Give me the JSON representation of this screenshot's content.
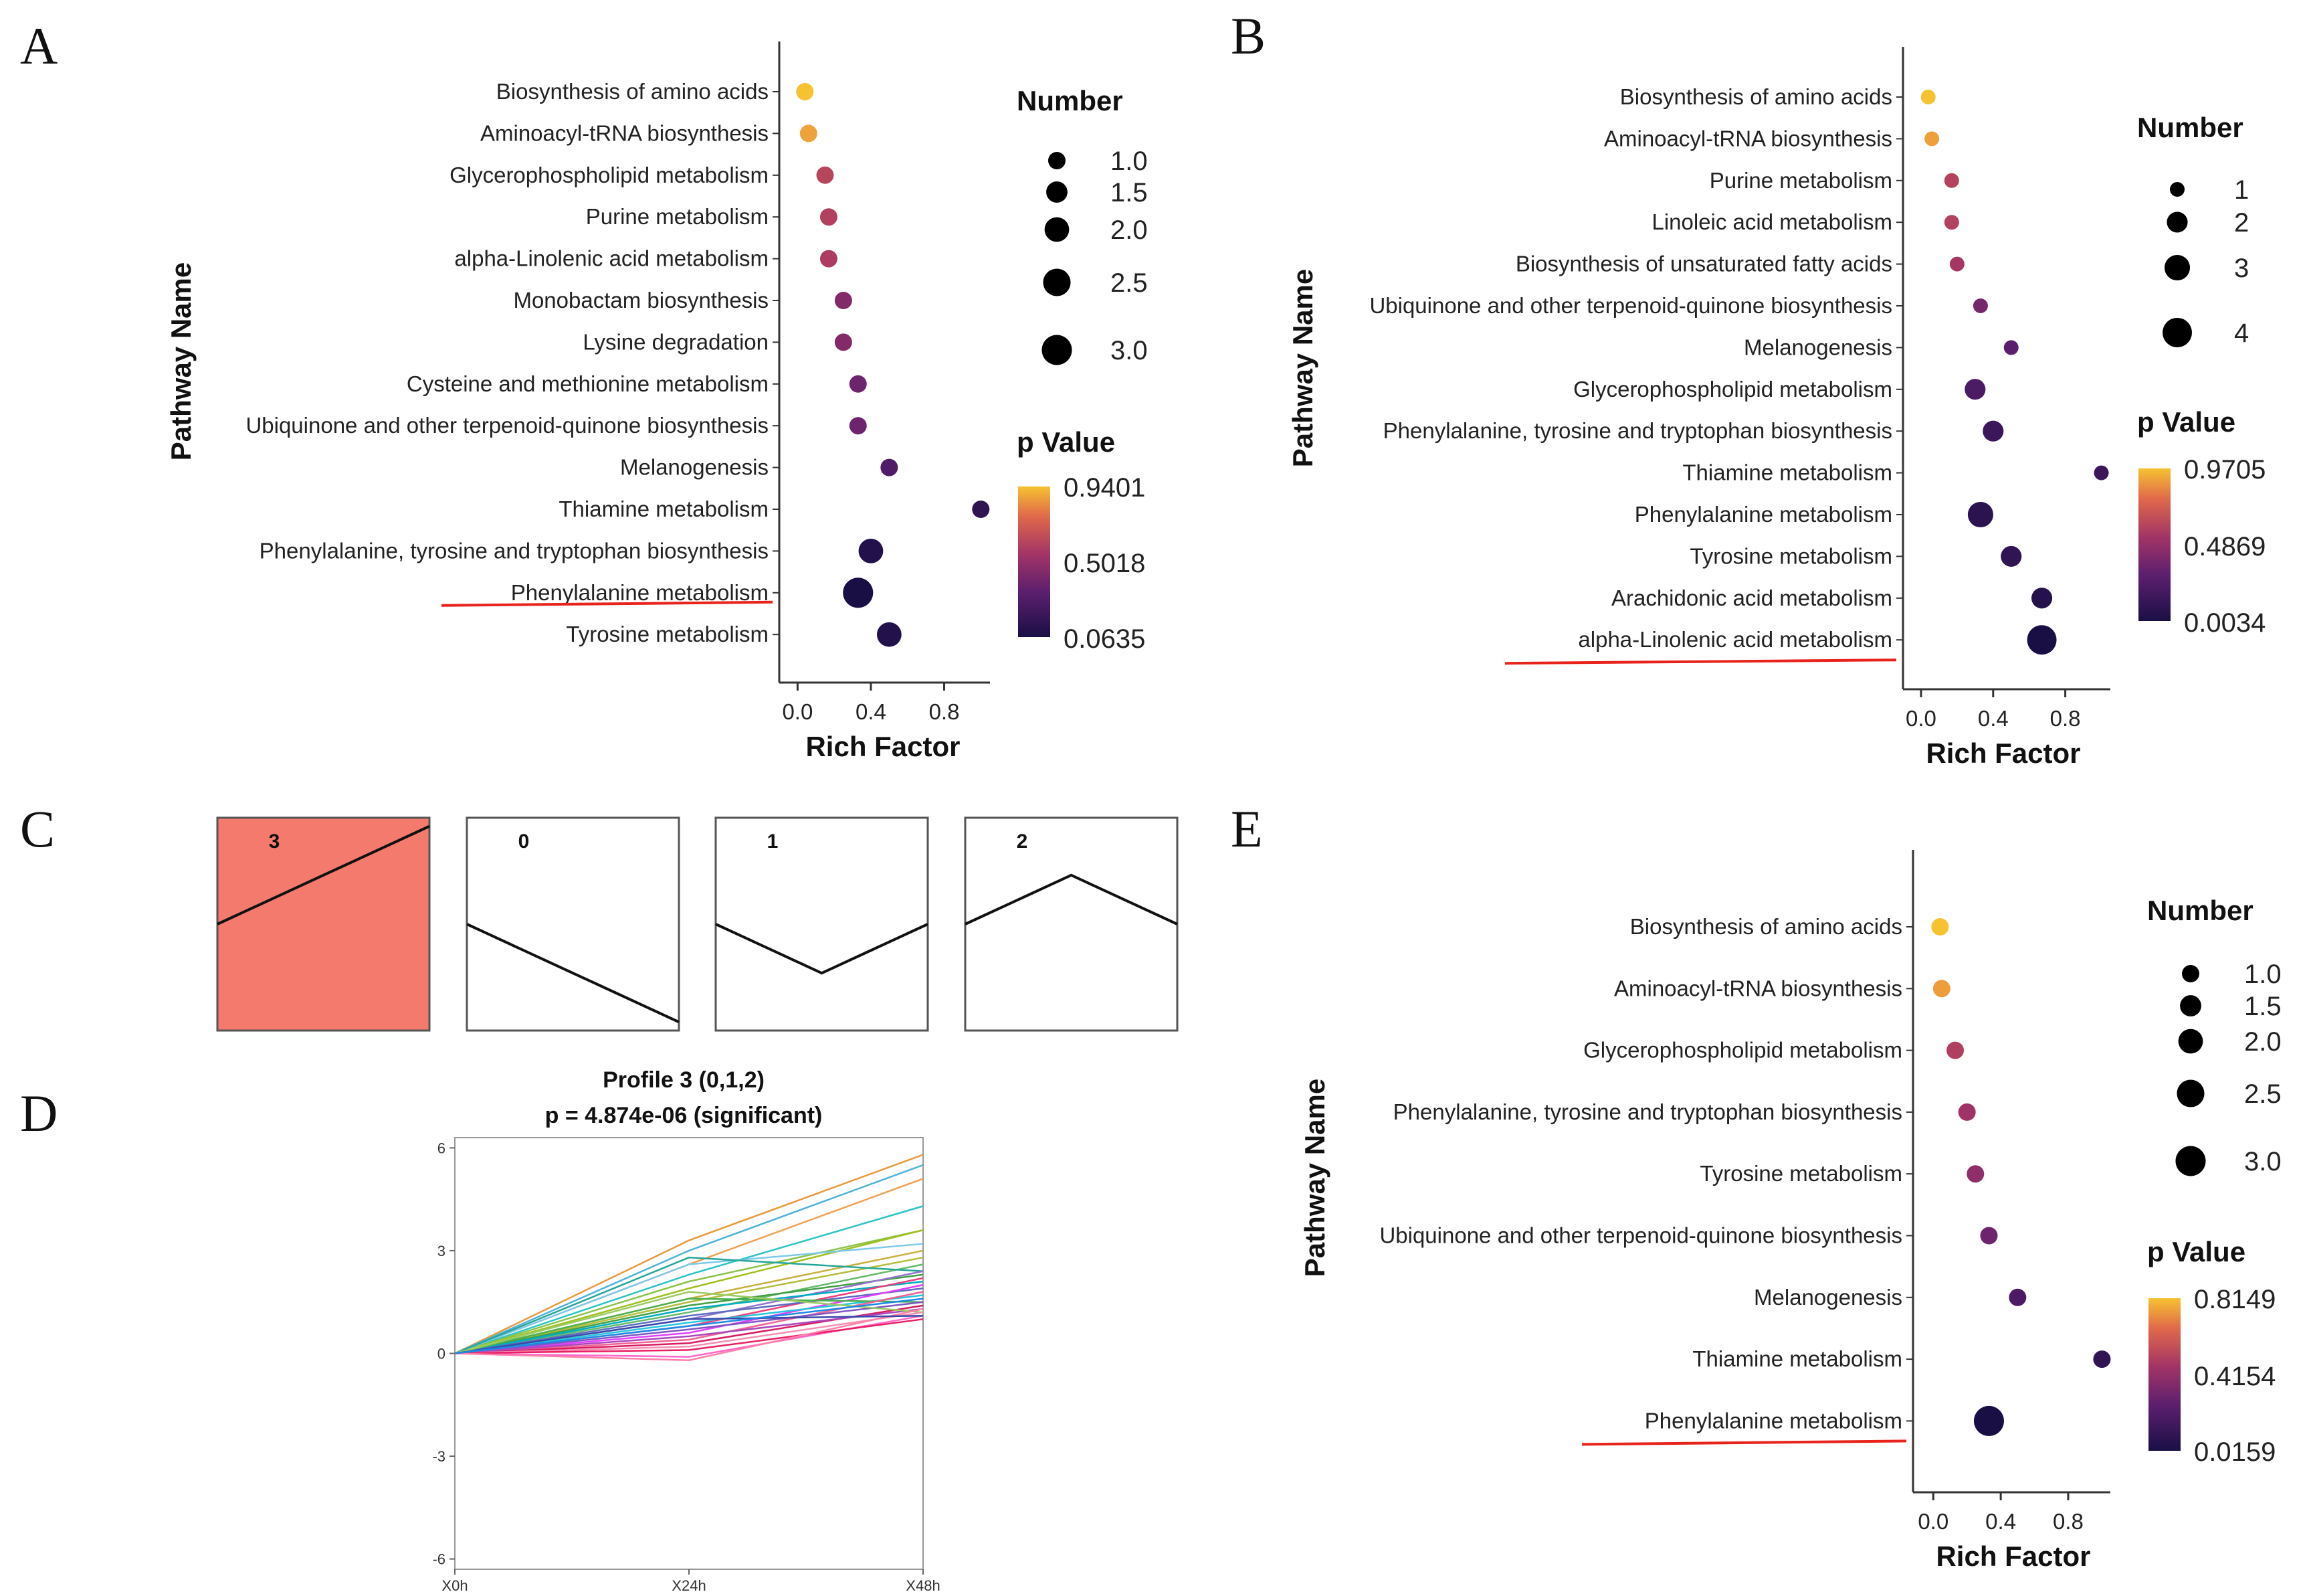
{
  "panels": {
    "A": {
      "letter": "A",
      "chart_data": {
        "type": "scatter",
        "subtype": "bubble",
        "xlabel": "Rich Factor",
        "ylabel": "Pathway Name",
        "xlim": [
          -0.1,
          1.05
        ],
        "xticks": [
          "0.0",
          "0.4",
          "0.8"
        ],
        "pathways": [
          {
            "name": "Biosynthesis of amino acids",
            "rich": 0.04,
            "number": 1,
            "p": 0.9401
          },
          {
            "name": "Aminoacyl-tRNA biosynthesis",
            "rich": 0.06,
            "number": 1,
            "p": 0.88
          },
          {
            "name": "Glycerophospholipid metabolism",
            "rich": 0.15,
            "number": 1,
            "p": 0.62
          },
          {
            "name": "Purine metabolism",
            "rich": 0.17,
            "number": 1,
            "p": 0.6
          },
          {
            "name": "alpha-Linolenic acid metabolism",
            "rich": 0.17,
            "number": 1,
            "p": 0.58
          },
          {
            "name": "Monobactam biosynthesis",
            "rich": 0.25,
            "number": 1,
            "p": 0.45
          },
          {
            "name": "Lysine degradation",
            "rich": 0.25,
            "number": 1,
            "p": 0.45
          },
          {
            "name": "Cysteine and methionine metabolism",
            "rich": 0.33,
            "number": 1,
            "p": 0.38
          },
          {
            "name": "Ubiquinone and other terpenoid-quinone biosynthesis",
            "rich": 0.33,
            "number": 1,
            "p": 0.38
          },
          {
            "name": "Melanogenesis",
            "rich": 0.5,
            "number": 1,
            "p": 0.28
          },
          {
            "name": "Thiamine metabolism",
            "rich": 1.0,
            "number": 1,
            "p": 0.15
          },
          {
            "name": "Phenylalanine, tyrosine and tryptophan biosynthesis",
            "rich": 0.4,
            "number": 2,
            "p": 0.1
          },
          {
            "name": "Phenylalanine metabolism",
            "rich": 0.33,
            "number": 3,
            "p": 0.0635
          },
          {
            "name": "Tyrosine metabolism",
            "rich": 0.5,
            "number": 2,
            "p": 0.1
          }
        ],
        "underlined": "Phenylalanine metabolism",
        "size_legend": {
          "title": "Number",
          "values": [
            "1.0",
            "1.5",
            "2.0",
            "2.5",
            "3.0"
          ]
        },
        "color_legend": {
          "title": "p Value",
          "max": "0.9401",
          "mid": "0.5018",
          "min": "0.0635"
        }
      }
    },
    "B": {
      "letter": "B",
      "chart_data": {
        "type": "scatter",
        "subtype": "bubble",
        "xlabel": "Rich Factor",
        "ylabel": "Pathway Name",
        "xlim": [
          -0.1,
          1.05
        ],
        "xticks": [
          "0.0",
          "0.4",
          "0.8"
        ],
        "pathways": [
          {
            "name": "Biosynthesis of amino acids",
            "rich": 0.04,
            "number": 1,
            "p": 0.9705
          },
          {
            "name": "Aminoacyl-tRNA biosynthesis",
            "rich": 0.06,
            "number": 1,
            "p": 0.9
          },
          {
            "name": "Purine metabolism",
            "rich": 0.17,
            "number": 1,
            "p": 0.6
          },
          {
            "name": "Linoleic acid metabolism",
            "rich": 0.17,
            "number": 1,
            "p": 0.6
          },
          {
            "name": "Biosynthesis of unsaturated fatty acids",
            "rich": 0.2,
            "number": 1,
            "p": 0.55
          },
          {
            "name": "Ubiquinone and other terpenoid-quinone biosynthesis",
            "rich": 0.33,
            "number": 1,
            "p": 0.38
          },
          {
            "name": "Melanogenesis",
            "rich": 0.5,
            "number": 1,
            "p": 0.28
          },
          {
            "name": "Glycerophospholipid metabolism",
            "rich": 0.3,
            "number": 2,
            "p": 0.22
          },
          {
            "name": "Phenylalanine, tyrosine and tryptophan biosynthesis",
            "rich": 0.4,
            "number": 2,
            "p": 0.15
          },
          {
            "name": "Thiamine metabolism",
            "rich": 1.0,
            "number": 1,
            "p": 0.15
          },
          {
            "name": "Phenylalanine metabolism",
            "rich": 0.33,
            "number": 3,
            "p": 0.08
          },
          {
            "name": "Tyrosine metabolism",
            "rich": 0.5,
            "number": 2,
            "p": 0.1
          },
          {
            "name": "Arachidonic acid metabolism",
            "rich": 0.67,
            "number": 2,
            "p": 0.05
          },
          {
            "name": "alpha-Linolenic acid metabolism",
            "rich": 0.67,
            "number": 4,
            "p": 0.0034
          }
        ],
        "underlined": "alpha-Linolenic acid metabolism",
        "size_legend": {
          "title": "Number",
          "values": [
            "1",
            "2",
            "3",
            "4"
          ]
        },
        "color_legend": {
          "title": "p Value",
          "max": "0.9705",
          "mid": "0.4869",
          "min": "0.0034"
        }
      }
    },
    "C": {
      "letter": "C",
      "profiles": [
        {
          "label": "3",
          "shape": [
            0,
            1,
            2
          ],
          "highlight": true
        },
        {
          "label": "0",
          "shape": [
            0,
            -1,
            -2
          ],
          "highlight": false
        },
        {
          "label": "1",
          "shape": [
            0,
            -1,
            0
          ],
          "highlight": false
        },
        {
          "label": "2",
          "shape": [
            0,
            1,
            0
          ],
          "highlight": false
        }
      ],
      "highlight_color": "#f47a6e"
    },
    "D": {
      "letter": "D",
      "chart_data": {
        "type": "line",
        "title": "Profile 3 (0,1,2)",
        "subtitle": "p = 4.874e-06 (significant)",
        "x": [
          "X0h",
          "X24h",
          "X48h"
        ],
        "ylim": [
          -6.3,
          6.3
        ],
        "yticks": [
          "6",
          "3",
          "0",
          "-3",
          "-6"
        ],
        "series": [
          {
            "values": [
              0,
              3.3,
              5.8
            ],
            "color": "#e89a3c"
          },
          {
            "values": [
              0,
              3.0,
              5.5
            ],
            "color": "#4fb3d9"
          },
          {
            "values": [
              0,
              2.6,
              5.1
            ],
            "color": "#f0a050"
          },
          {
            "values": [
              0,
              2.3,
              4.3
            ],
            "color": "#2ec4c4"
          },
          {
            "values": [
              0,
              2.1,
              3.6
            ],
            "color": "#8bc34a"
          },
          {
            "values": [
              0,
              1.9,
              3.6
            ],
            "color": "#a0c020"
          },
          {
            "values": [
              0,
              2.6,
              3.2
            ],
            "color": "#7ec9e8"
          },
          {
            "values": [
              0,
              1.6,
              3.0
            ],
            "color": "#c8b040"
          },
          {
            "values": [
              0,
              1.5,
              2.8
            ],
            "color": "#b5bd3a"
          },
          {
            "values": [
              0,
              1.2,
              2.6
            ],
            "color": "#66bb6a"
          },
          {
            "values": [
              0,
              2.8,
              2.4
            ],
            "color": "#26a69a"
          },
          {
            "values": [
              0,
              1.4,
              2.3
            ],
            "color": "#43a047"
          },
          {
            "values": [
              0,
              1.0,
              2.4
            ],
            "color": "#9575cd"
          },
          {
            "values": [
              0,
              1.3,
              2.1
            ],
            "color": "#00acc1"
          },
          {
            "values": [
              0,
              0.8,
              2.2
            ],
            "color": "#ec407a"
          },
          {
            "values": [
              0,
              1.1,
              1.9
            ],
            "color": "#5c6bc0"
          },
          {
            "values": [
              0,
              0.6,
              2.0
            ],
            "color": "#e040fb"
          },
          {
            "values": [
              0,
              0.9,
              1.7
            ],
            "color": "#26c6da"
          },
          {
            "values": [
              0,
              1.6,
              1.5
            ],
            "color": "#4caf50"
          },
          {
            "values": [
              0,
              0.4,
              1.8
            ],
            "color": "#f06292"
          },
          {
            "values": [
              0,
              0.7,
              1.5
            ],
            "color": "#7e57c2"
          },
          {
            "values": [
              0,
              0.3,
              1.4
            ],
            "color": "#d81b60"
          },
          {
            "values": [
              0,
              0.5,
              1.3
            ],
            "color": "#ab47bc"
          },
          {
            "values": [
              0,
              1.8,
              1.2
            ],
            "color": "#9ccc65"
          },
          {
            "values": [
              0,
              0.2,
              1.2
            ],
            "color": "#f48fb1"
          },
          {
            "values": [
              0,
              -0.1,
              1.1
            ],
            "color": "#ff66cc"
          },
          {
            "values": [
              0,
              0.1,
              1.0
            ],
            "color": "#e91e63"
          },
          {
            "values": [
              0,
              -0.2,
              1.3
            ],
            "color": "#ff80ab"
          },
          {
            "values": [
              0,
              1.0,
              1.1
            ],
            "color": "#3949ab"
          },
          {
            "values": [
              0,
              0.8,
              1.6
            ],
            "color": "#1e88e5"
          }
        ]
      }
    },
    "E": {
      "letter": "E",
      "chart_data": {
        "type": "scatter",
        "subtype": "bubble",
        "xlabel": "Rich Factor",
        "ylabel": "Pathway Name",
        "xlim": [
          -0.12,
          1.05
        ],
        "xticks": [
          "0.0",
          "0.4",
          "0.8"
        ],
        "pathways": [
          {
            "name": "Biosynthesis of amino acids",
            "rich": 0.04,
            "number": 1,
            "p": 0.8149
          },
          {
            "name": "Aminoacyl-tRNA biosynthesis",
            "rich": 0.05,
            "number": 1,
            "p": 0.75
          },
          {
            "name": "Glycerophospholipid metabolism",
            "rich": 0.13,
            "number": 1,
            "p": 0.5
          },
          {
            "name": "Phenylalanine, tyrosine and tryptophan biosynthesis",
            "rich": 0.2,
            "number": 1,
            "p": 0.45
          },
          {
            "name": "Tyrosine metabolism",
            "rich": 0.25,
            "number": 1,
            "p": 0.4
          },
          {
            "name": "Ubiquinone and other terpenoid-quinone biosynthesis",
            "rich": 0.33,
            "number": 1,
            "p": 0.3
          },
          {
            "name": "Melanogenesis",
            "rich": 0.5,
            "number": 1,
            "p": 0.2
          },
          {
            "name": "Thiamine metabolism",
            "rich": 1.0,
            "number": 1,
            "p": 0.1
          },
          {
            "name": "Phenylalanine metabolism",
            "rich": 0.33,
            "number": 3,
            "p": 0.0159
          }
        ],
        "underlined": "Phenylalanine metabolism",
        "size_legend": {
          "title": "Number",
          "values": [
            "1.0",
            "1.5",
            "2.0",
            "2.5",
            "3.0"
          ]
        },
        "color_legend": {
          "title": "p Value",
          "max": "0.8149",
          "mid": "0.4154",
          "min": "0.0159"
        }
      }
    }
  }
}
